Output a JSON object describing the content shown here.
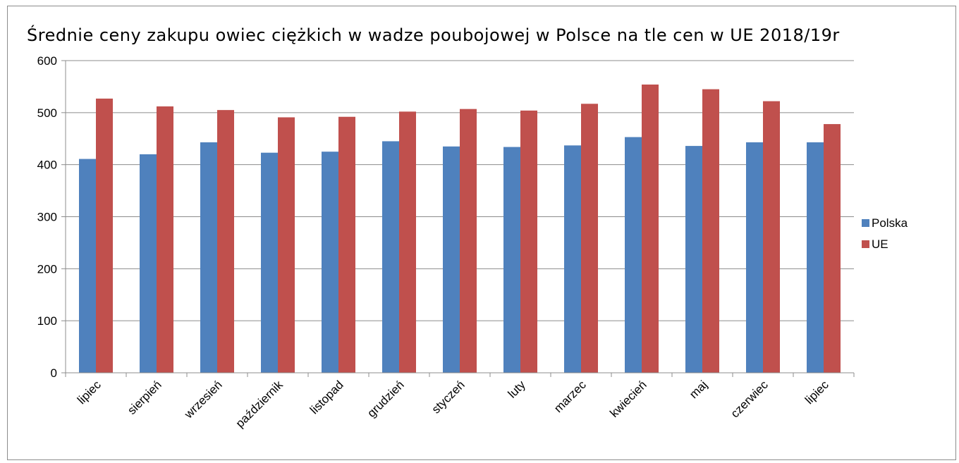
{
  "chart_data": {
    "type": "bar",
    "title": "Średnie ceny zakupu owiec ciężkich w wadze poubojowej  w  Polsce na tle cen w UE 2018/19r",
    "xlabel": "",
    "ylabel": "",
    "ylim": [
      0,
      600
    ],
    "yticks": [
      0,
      100,
      200,
      300,
      400,
      500,
      600
    ],
    "grid": true,
    "legend_position": "right",
    "categories": [
      "lipiec",
      "sierpień",
      "wrzesień",
      "październik",
      "listopad",
      "grudzień",
      "styczeń",
      "luty",
      "marzec",
      "kwiecień",
      "maj",
      "czerwiec",
      "lipiec"
    ],
    "series": [
      {
        "name": "Polska",
        "color": "#4f81bd",
        "values": [
          411,
          420,
          443,
          423,
          425,
          445,
          435,
          434,
          437,
          453,
          436,
          443,
          443
        ]
      },
      {
        "name": "UE",
        "color": "#c0504d",
        "values": [
          527,
          512,
          505,
          491,
          492,
          502,
          507,
          504,
          517,
          554,
          545,
          522,
          478
        ]
      }
    ]
  }
}
